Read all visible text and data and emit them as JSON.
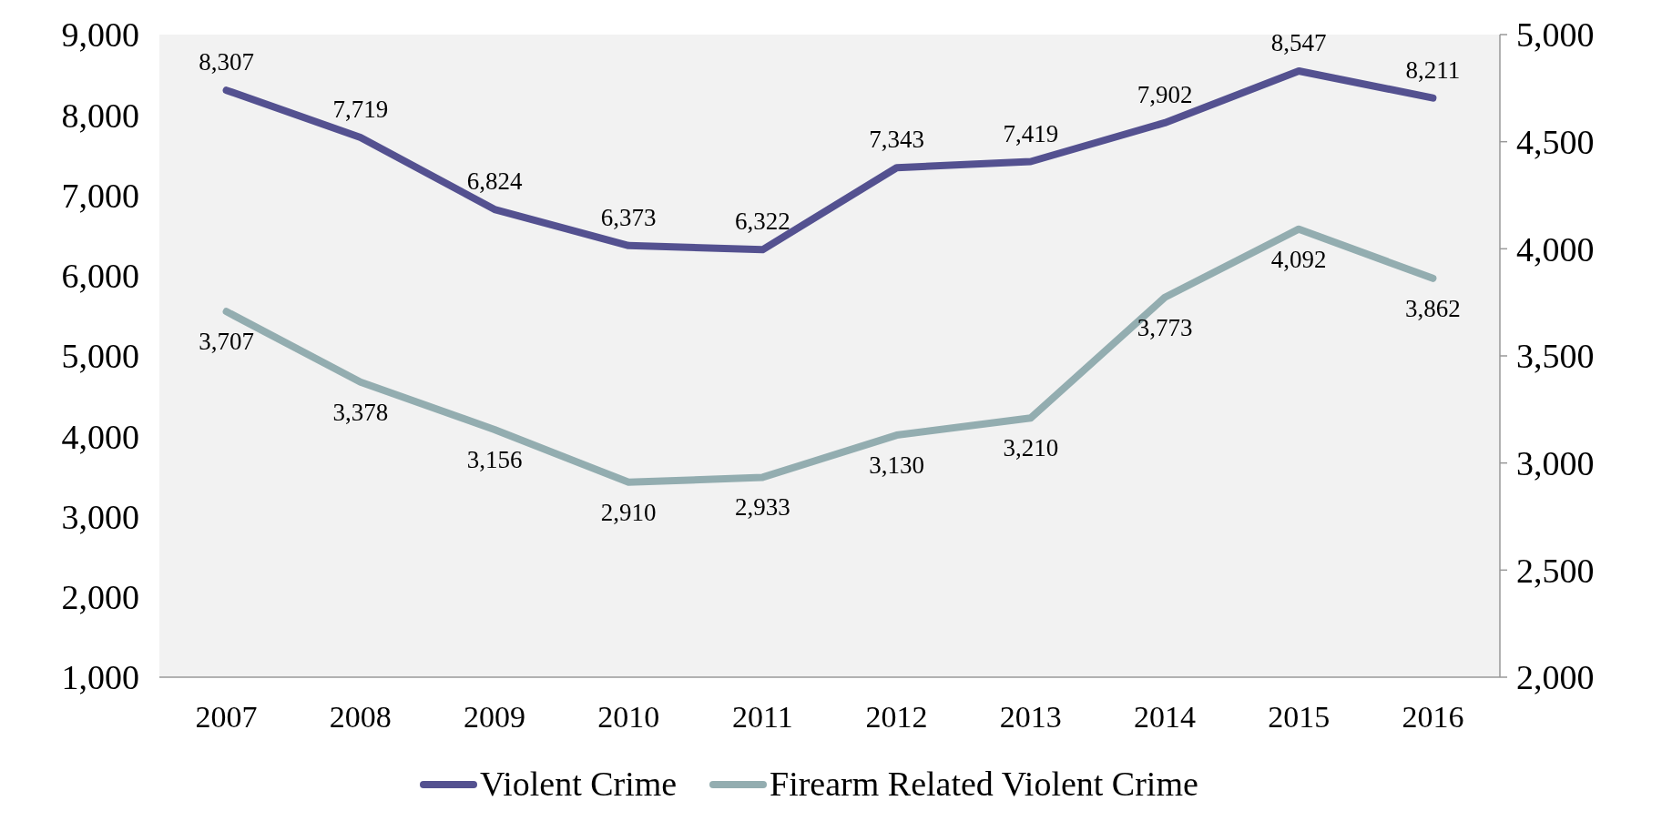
{
  "chart_data": {
    "type": "line",
    "categories": [
      "2007",
      "2008",
      "2009",
      "2010",
      "2011",
      "2012",
      "2013",
      "2014",
      "2015",
      "2016"
    ],
    "series": [
      {
        "name": "Violent Crime",
        "color": "#545190",
        "values": [
          8307,
          7719,
          6824,
          6373,
          6322,
          7343,
          7419,
          7902,
          8547,
          8211
        ],
        "value_labels": [
          "8,307",
          "7,719",
          "6,824",
          "6,373",
          "6,322",
          "7,343",
          "7,419",
          "7,902",
          "8,547",
          "8,211"
        ]
      },
      {
        "name": "Firearm Related Violent Crime",
        "color": "#93adb0",
        "axis": "y2",
        "values": [
          3707,
          3378,
          3156,
          2910,
          2933,
          3130,
          3210,
          3773,
          4092,
          3862
        ],
        "value_labels": [
          "3,707",
          "3,378",
          "3,156",
          "2,910",
          "2,933",
          "3,130",
          "3,210",
          "3,773",
          "4,092",
          "3,862"
        ]
      }
    ],
    "ylim": [
      1000,
      9000
    ],
    "yticks": [
      {
        "value": 1000,
        "label": "1,000"
      },
      {
        "value": 2000,
        "label": "2,000"
      },
      {
        "value": 3000,
        "label": "3,000"
      },
      {
        "value": 4000,
        "label": "4,000"
      },
      {
        "value": 5000,
        "label": "5,000"
      },
      {
        "value": 6000,
        "label": "6,000"
      },
      {
        "value": 7000,
        "label": "7,000"
      },
      {
        "value": 8000,
        "label": "8,000"
      },
      {
        "value": 9000,
        "label": "9,000"
      }
    ],
    "y2lim": [
      2000,
      5000
    ],
    "y2ticks": [
      {
        "value": 2000,
        "label": "2,000"
      },
      {
        "value": 2500,
        "label": "2,500"
      },
      {
        "value": 3000,
        "label": "3,000"
      },
      {
        "value": 3500,
        "label": "3,500"
      },
      {
        "value": 4000,
        "label": "4,000"
      },
      {
        "value": 4500,
        "label": "4,500"
      },
      {
        "value": 5000,
        "label": "5,000"
      }
    ],
    "legend": "bottom",
    "grid": false,
    "marker": "none",
    "line_style": "solid"
  }
}
